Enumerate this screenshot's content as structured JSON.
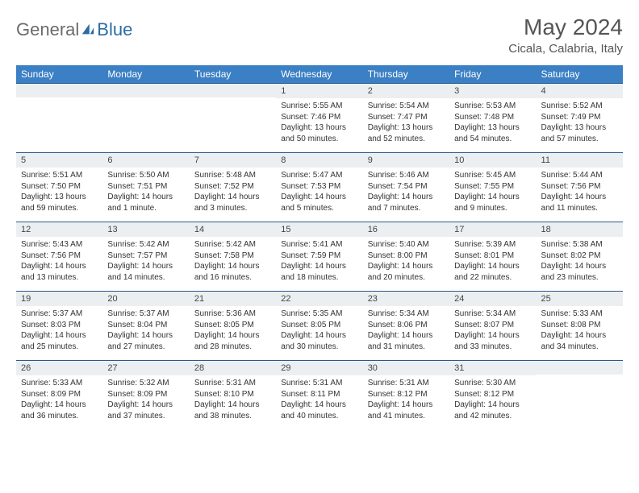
{
  "logo": {
    "part1": "General",
    "part2": "Blue"
  },
  "title": "May 2024",
  "location": "Cicala, Calabria, Italy",
  "colors": {
    "header_bg": "#3b7fc4",
    "header_text": "#ffffff",
    "daynum_bg": "#eceff1",
    "border": "#2b5a8a",
    "logo_gray": "#6b6b6b",
    "logo_blue": "#2b6ca3"
  },
  "weekdays": [
    "Sunday",
    "Monday",
    "Tuesday",
    "Wednesday",
    "Thursday",
    "Friday",
    "Saturday"
  ],
  "weeks": [
    [
      {
        "day": "",
        "sunrise": "",
        "sunset": "",
        "daylight": ""
      },
      {
        "day": "",
        "sunrise": "",
        "sunset": "",
        "daylight": ""
      },
      {
        "day": "",
        "sunrise": "",
        "sunset": "",
        "daylight": ""
      },
      {
        "day": "1",
        "sunrise": "Sunrise: 5:55 AM",
        "sunset": "Sunset: 7:46 PM",
        "daylight": "Daylight: 13 hours and 50 minutes."
      },
      {
        "day": "2",
        "sunrise": "Sunrise: 5:54 AM",
        "sunset": "Sunset: 7:47 PM",
        "daylight": "Daylight: 13 hours and 52 minutes."
      },
      {
        "day": "3",
        "sunrise": "Sunrise: 5:53 AM",
        "sunset": "Sunset: 7:48 PM",
        "daylight": "Daylight: 13 hours and 54 minutes."
      },
      {
        "day": "4",
        "sunrise": "Sunrise: 5:52 AM",
        "sunset": "Sunset: 7:49 PM",
        "daylight": "Daylight: 13 hours and 57 minutes."
      }
    ],
    [
      {
        "day": "5",
        "sunrise": "Sunrise: 5:51 AM",
        "sunset": "Sunset: 7:50 PM",
        "daylight": "Daylight: 13 hours and 59 minutes."
      },
      {
        "day": "6",
        "sunrise": "Sunrise: 5:50 AM",
        "sunset": "Sunset: 7:51 PM",
        "daylight": "Daylight: 14 hours and 1 minute."
      },
      {
        "day": "7",
        "sunrise": "Sunrise: 5:48 AM",
        "sunset": "Sunset: 7:52 PM",
        "daylight": "Daylight: 14 hours and 3 minutes."
      },
      {
        "day": "8",
        "sunrise": "Sunrise: 5:47 AM",
        "sunset": "Sunset: 7:53 PM",
        "daylight": "Daylight: 14 hours and 5 minutes."
      },
      {
        "day": "9",
        "sunrise": "Sunrise: 5:46 AM",
        "sunset": "Sunset: 7:54 PM",
        "daylight": "Daylight: 14 hours and 7 minutes."
      },
      {
        "day": "10",
        "sunrise": "Sunrise: 5:45 AM",
        "sunset": "Sunset: 7:55 PM",
        "daylight": "Daylight: 14 hours and 9 minutes."
      },
      {
        "day": "11",
        "sunrise": "Sunrise: 5:44 AM",
        "sunset": "Sunset: 7:56 PM",
        "daylight": "Daylight: 14 hours and 11 minutes."
      }
    ],
    [
      {
        "day": "12",
        "sunrise": "Sunrise: 5:43 AM",
        "sunset": "Sunset: 7:56 PM",
        "daylight": "Daylight: 14 hours and 13 minutes."
      },
      {
        "day": "13",
        "sunrise": "Sunrise: 5:42 AM",
        "sunset": "Sunset: 7:57 PM",
        "daylight": "Daylight: 14 hours and 14 minutes."
      },
      {
        "day": "14",
        "sunrise": "Sunrise: 5:42 AM",
        "sunset": "Sunset: 7:58 PM",
        "daylight": "Daylight: 14 hours and 16 minutes."
      },
      {
        "day": "15",
        "sunrise": "Sunrise: 5:41 AM",
        "sunset": "Sunset: 7:59 PM",
        "daylight": "Daylight: 14 hours and 18 minutes."
      },
      {
        "day": "16",
        "sunrise": "Sunrise: 5:40 AM",
        "sunset": "Sunset: 8:00 PM",
        "daylight": "Daylight: 14 hours and 20 minutes."
      },
      {
        "day": "17",
        "sunrise": "Sunrise: 5:39 AM",
        "sunset": "Sunset: 8:01 PM",
        "daylight": "Daylight: 14 hours and 22 minutes."
      },
      {
        "day": "18",
        "sunrise": "Sunrise: 5:38 AM",
        "sunset": "Sunset: 8:02 PM",
        "daylight": "Daylight: 14 hours and 23 minutes."
      }
    ],
    [
      {
        "day": "19",
        "sunrise": "Sunrise: 5:37 AM",
        "sunset": "Sunset: 8:03 PM",
        "daylight": "Daylight: 14 hours and 25 minutes."
      },
      {
        "day": "20",
        "sunrise": "Sunrise: 5:37 AM",
        "sunset": "Sunset: 8:04 PM",
        "daylight": "Daylight: 14 hours and 27 minutes."
      },
      {
        "day": "21",
        "sunrise": "Sunrise: 5:36 AM",
        "sunset": "Sunset: 8:05 PM",
        "daylight": "Daylight: 14 hours and 28 minutes."
      },
      {
        "day": "22",
        "sunrise": "Sunrise: 5:35 AM",
        "sunset": "Sunset: 8:05 PM",
        "daylight": "Daylight: 14 hours and 30 minutes."
      },
      {
        "day": "23",
        "sunrise": "Sunrise: 5:34 AM",
        "sunset": "Sunset: 8:06 PM",
        "daylight": "Daylight: 14 hours and 31 minutes."
      },
      {
        "day": "24",
        "sunrise": "Sunrise: 5:34 AM",
        "sunset": "Sunset: 8:07 PM",
        "daylight": "Daylight: 14 hours and 33 minutes."
      },
      {
        "day": "25",
        "sunrise": "Sunrise: 5:33 AM",
        "sunset": "Sunset: 8:08 PM",
        "daylight": "Daylight: 14 hours and 34 minutes."
      }
    ],
    [
      {
        "day": "26",
        "sunrise": "Sunrise: 5:33 AM",
        "sunset": "Sunset: 8:09 PM",
        "daylight": "Daylight: 14 hours and 36 minutes."
      },
      {
        "day": "27",
        "sunrise": "Sunrise: 5:32 AM",
        "sunset": "Sunset: 8:09 PM",
        "daylight": "Daylight: 14 hours and 37 minutes."
      },
      {
        "day": "28",
        "sunrise": "Sunrise: 5:31 AM",
        "sunset": "Sunset: 8:10 PM",
        "daylight": "Daylight: 14 hours and 38 minutes."
      },
      {
        "day": "29",
        "sunrise": "Sunrise: 5:31 AM",
        "sunset": "Sunset: 8:11 PM",
        "daylight": "Daylight: 14 hours and 40 minutes."
      },
      {
        "day": "30",
        "sunrise": "Sunrise: 5:31 AM",
        "sunset": "Sunset: 8:12 PM",
        "daylight": "Daylight: 14 hours and 41 minutes."
      },
      {
        "day": "31",
        "sunrise": "Sunrise: 5:30 AM",
        "sunset": "Sunset: 8:12 PM",
        "daylight": "Daylight: 14 hours and 42 minutes."
      },
      {
        "day": "",
        "sunrise": "",
        "sunset": "",
        "daylight": ""
      }
    ]
  ]
}
